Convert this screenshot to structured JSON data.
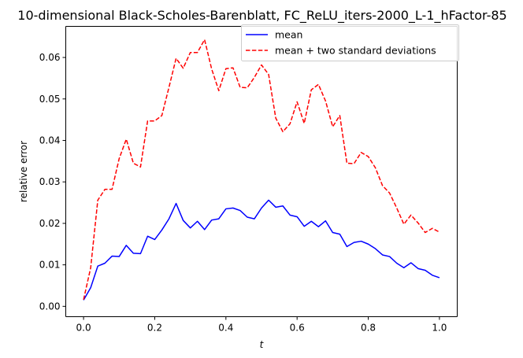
{
  "chart_data": {
    "type": "line",
    "title": "10-dimensional Black-Scholes-Barenblatt, FC_ReLU_iters-2000_L-1_hFactor-85",
    "xlabel": "t",
    "ylabel": "relative error",
    "xlim": [
      -0.05,
      1.05
    ],
    "ylim": [
      -0.0025,
      0.0675
    ],
    "xticks": [
      0.0,
      0.2,
      0.4,
      0.6,
      0.8,
      1.0
    ],
    "xtick_labels": [
      "0.0",
      "0.2",
      "0.4",
      "0.6",
      "0.8",
      "1.0"
    ],
    "yticks": [
      0.0,
      0.01,
      0.02,
      0.03,
      0.04,
      0.05,
      0.06
    ],
    "ytick_labels": [
      "0.00",
      "0.01",
      "0.02",
      "0.03",
      "0.04",
      "0.05",
      "0.06"
    ],
    "grid": false,
    "legend_position": "upper-right",
    "x": [
      0.0,
      0.02,
      0.04,
      0.06,
      0.08,
      0.1,
      0.12,
      0.14,
      0.16,
      0.18,
      0.2,
      0.22,
      0.24,
      0.26,
      0.28,
      0.3,
      0.32,
      0.34,
      0.36,
      0.38,
      0.4,
      0.42,
      0.44,
      0.46,
      0.48,
      0.5,
      0.52,
      0.54,
      0.56,
      0.58,
      0.6,
      0.62,
      0.64,
      0.66,
      0.68,
      0.7,
      0.72,
      0.74,
      0.76,
      0.78,
      0.8,
      0.82,
      0.84,
      0.86,
      0.88,
      0.9,
      0.92,
      0.94,
      0.96,
      0.98,
      1.0
    ],
    "series": [
      {
        "name": "mean",
        "color": "#0000ff",
        "dash": "solid",
        "values": [
          0.0015,
          0.0045,
          0.0097,
          0.0104,
          0.0121,
          0.012,
          0.0147,
          0.0128,
          0.0127,
          0.0169,
          0.0161,
          0.0184,
          0.0211,
          0.0248,
          0.0207,
          0.0189,
          0.0205,
          0.0185,
          0.0208,
          0.0211,
          0.0235,
          0.0237,
          0.0231,
          0.0215,
          0.0211,
          0.0237,
          0.0256,
          0.0239,
          0.0242,
          0.022,
          0.0216,
          0.0193,
          0.0205,
          0.0192,
          0.0206,
          0.0178,
          0.0174,
          0.0144,
          0.0154,
          0.0157,
          0.015,
          0.0139,
          0.0124,
          0.012,
          0.0104,
          0.0093,
          0.0105,
          0.0091,
          0.0087,
          0.0075,
          0.0069
        ]
      },
      {
        "name": "mean + two standard deviations",
        "color": "#ff0000",
        "dash": "dashed",
        "values": [
          0.0016,
          0.0093,
          0.0256,
          0.0282,
          0.0282,
          0.0356,
          0.0403,
          0.0345,
          0.0336,
          0.0447,
          0.0447,
          0.046,
          0.0528,
          0.0598,
          0.0574,
          0.0612,
          0.0612,
          0.0643,
          0.0572,
          0.052,
          0.0573,
          0.0575,
          0.0528,
          0.0527,
          0.0552,
          0.0582,
          0.0559,
          0.0454,
          0.0421,
          0.044,
          0.0493,
          0.0441,
          0.0522,
          0.0535,
          0.0495,
          0.0433,
          0.046,
          0.0345,
          0.0344,
          0.0371,
          0.0361,
          0.0334,
          0.0291,
          0.0273,
          0.0237,
          0.0198,
          0.022,
          0.0201,
          0.0178,
          0.0188,
          0.0179
        ]
      }
    ]
  }
}
